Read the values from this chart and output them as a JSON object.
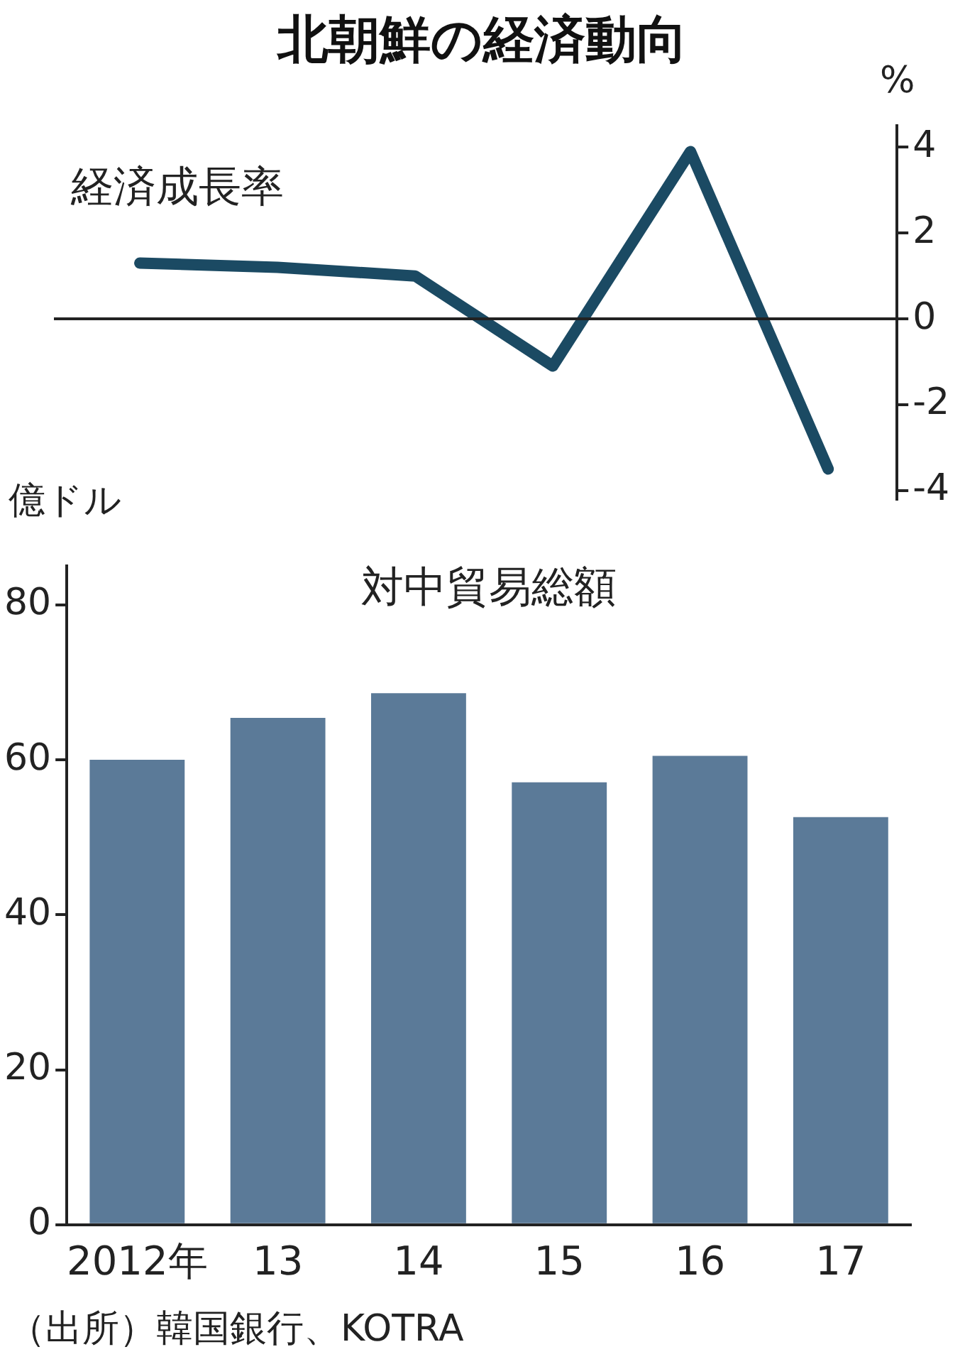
{
  "chart_data": [
    {
      "type": "line",
      "title": "北朝鮮の経済動向",
      "ylabel": "%",
      "categories": [
        null,
        null,
        null,
        null,
        null,
        null
      ],
      "series": [
        {
          "name": "経済成長率",
          "color": "#1b4a63",
          "values": [
            1.3,
            1.2,
            1.0,
            -1.1,
            3.9,
            -3.5
          ]
        }
      ],
      "ylim": [
        -4.2,
        4.5
      ],
      "yticks": [
        -4,
        -2,
        0,
        2,
        4
      ],
      "ref_lines": [
        {
          "axis": "y",
          "value": 0
        }
      ],
      "grid": false,
      "legend": false,
      "tick_labels": "y",
      "marker": "none",
      "line_style": "solid"
    },
    {
      "type": "bar",
      "title": "対中貿易総額",
      "ylabel": "億ドル",
      "categories": [
        "2012年",
        "13",
        "14",
        "15",
        "16",
        "17"
      ],
      "values": [
        60.0,
        65.4,
        68.6,
        57.1,
        60.5,
        52.6
      ],
      "color": "#5b7a98",
      "ylim": [
        0,
        85
      ],
      "yticks": [
        0,
        20,
        40,
        60,
        80
      ],
      "grid": false,
      "legend": false,
      "annotations": [
        "（出所）韓国銀行、KOTRA"
      ]
    }
  ]
}
